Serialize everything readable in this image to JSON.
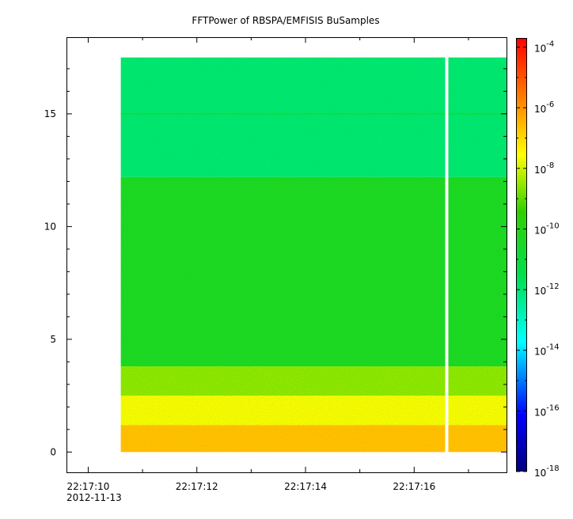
{
  "chart_data": {
    "type": "heatmap",
    "title": "FFTPower of RBSPA/EMFISIS  BuSamples",
    "xlabel": "",
    "ylabel": "",
    "x_axis": {
      "range": [
        "22:17:09.6",
        "22:17:17.7"
      ],
      "major_ticks": [
        "22:17:10",
        "22:17:12",
        "22:17:14",
        "22:17:16"
      ],
      "minor_ticks": [
        "22:17:11",
        "22:17:13",
        "22:17:15",
        "22:17:17"
      ],
      "date_label": "2012-11-13"
    },
    "y_axis": {
      "range": [
        -0.9,
        18.4
      ],
      "ticks": [
        0,
        5,
        10,
        15
      ]
    },
    "colorbar": {
      "scale": "log",
      "range": [
        1e-18,
        0.0002
      ],
      "ticks": [
        -4,
        -6,
        -8,
        -10,
        -12,
        -14,
        -16,
        -18
      ],
      "tick_labels": [
        {
          "base": "10",
          "exp": "-4"
        },
        {
          "base": "10",
          "exp": "-6"
        },
        {
          "base": "10",
          "exp": "-8"
        },
        {
          "base": "10",
          "exp": "-10"
        },
        {
          "base": "10",
          "exp": "-12"
        },
        {
          "base": "10",
          "exp": "-14"
        },
        {
          "base": "10",
          "exp": "-16"
        },
        {
          "base": "10",
          "exp": "-18"
        }
      ],
      "colormap": "rainbow (blue-cyan-green-yellow-orange-red)"
    },
    "data": {
      "time_extent": [
        "22:17:10.6",
        "22:17:17.7"
      ],
      "freq_extent": [
        0,
        17.5
      ],
      "gap": {
        "time": "22:17:16.6",
        "note": "white vertical data gap"
      },
      "bands": [
        {
          "freq_range": [
            0,
            1.2
          ],
          "log10_power": -6.5
        },
        {
          "freq_range": [
            1.2,
            2.5
          ],
          "log10_power": -7.5
        },
        {
          "freq_range": [
            2.5,
            3.8
          ],
          "log10_power": -8.5
        },
        {
          "freq_range": [
            3.8,
            12.2
          ],
          "log10_power": -10.2
        },
        {
          "freq_range": [
            12.2,
            17.5
          ],
          "log10_power": -11.8
        }
      ],
      "lines": [
        {
          "freq": 15.0,
          "log10_power": -10.8
        }
      ]
    }
  }
}
